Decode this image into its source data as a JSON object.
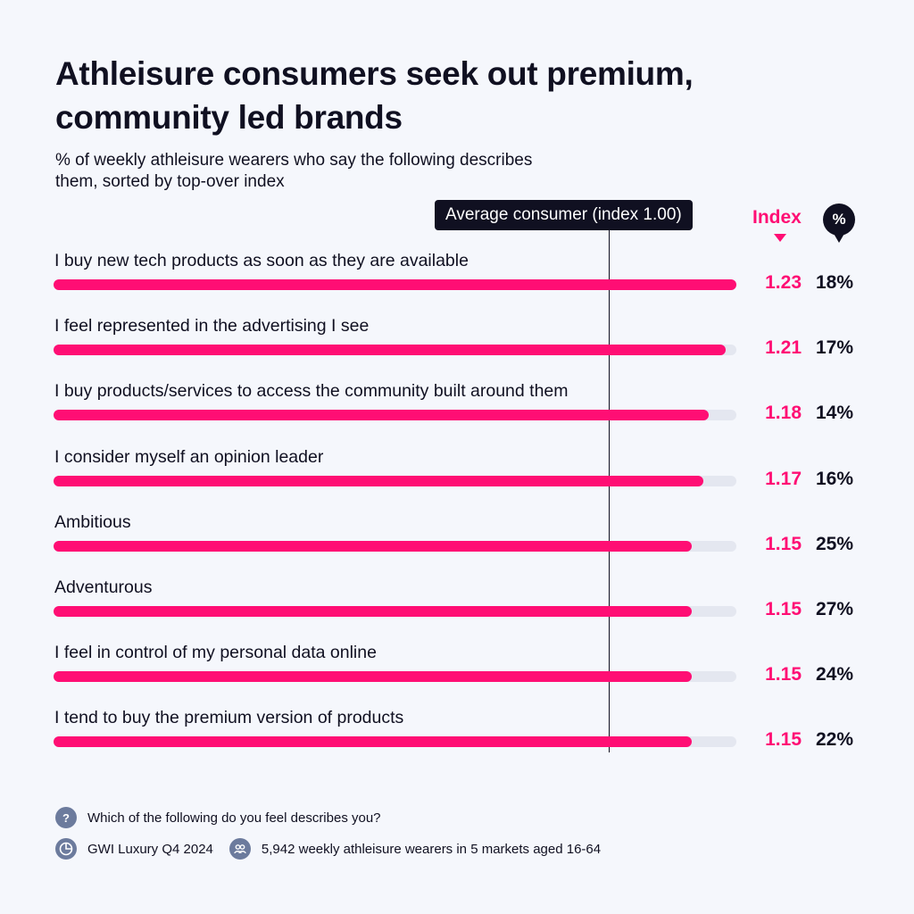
{
  "header": {
    "title": "Athleisure consumers seek out premium, community led brands",
    "subtitle": "% of weekly athleisure wearers who say the following describes them, sorted by top-over index"
  },
  "reference": {
    "label": "Average consumer (index 1.00)",
    "index_value": 1.0
  },
  "columns": {
    "index_label": "Index",
    "pct_label": "%"
  },
  "colors": {
    "accent": "#ff0e74",
    "dark": "#101021",
    "track": "#e4e7f0",
    "background": "#f5f7fc",
    "icon": "#6c7b9d"
  },
  "chart_data": {
    "type": "bar",
    "orientation": "horizontal",
    "title": "Athleisure consumers seek out premium, community led brands",
    "subtitle": "% of weekly athleisure wearers who say the following describes them, sorted by top-over index",
    "categories": [
      "I buy new tech products as soon as they are available",
      "I feel represented in the advertising I see",
      "I buy products/services to access the community built around them",
      "I consider myself an opinion leader",
      "Ambitious",
      "Adventurous",
      "I feel in control of my personal data online",
      "I tend to buy the premium version of products"
    ],
    "series": [
      {
        "name": "Index",
        "values": [
          1.23,
          1.21,
          1.18,
          1.17,
          1.15,
          1.15,
          1.15,
          1.15
        ],
        "labels": [
          "1.23",
          "1.21",
          "1.18",
          "1.17",
          "1.15",
          "1.15",
          "1.15",
          "1.15"
        ]
      },
      {
        "name": "%",
        "values": [
          18,
          17,
          14,
          16,
          25,
          27,
          24,
          22
        ],
        "labels": [
          "18%",
          "17%",
          "14%",
          "16%",
          "25%",
          "27%",
          "24%",
          "22%"
        ]
      }
    ],
    "xlim": [
      0,
      1.23
    ],
    "reference_line": 1.0,
    "grid": false
  },
  "footer": {
    "question": "Which of the following do you feel describes you?",
    "source": "GWI Luxury Q4 2024",
    "sample": "5,942 weekly athleisure wearers in 5 markets aged 16-64",
    "question_icon_glyph": "?",
    "icons": [
      "question-icon",
      "gwi-logo-icon",
      "people-icon"
    ]
  }
}
